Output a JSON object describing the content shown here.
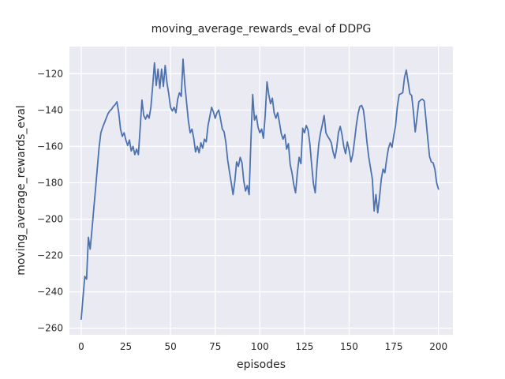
{
  "chart_data": {
    "type": "line",
    "title": "moving_average_rewards_eval of DDPG",
    "xlabel": "episodes",
    "ylabel": "moving_average_rewards_eval",
    "series_name": "moving_average_rewards_eval",
    "legend": "none",
    "grid": true,
    "style": "seaborn-darkgrid",
    "line_color": "#4c72b0",
    "axes_bg_color": "#eaeaf2",
    "grid_color": "#ffffff",
    "text_color": "#262626",
    "xticks": [
      0,
      25,
      50,
      75,
      100,
      125,
      150,
      175,
      200
    ],
    "yticks": [
      -260,
      -240,
      -220,
      -200,
      -180,
      -160,
      -140,
      -120
    ],
    "xlim": [
      -6.6,
      208.1
    ],
    "ylim": [
      -263.6,
      -105.1
    ],
    "x_start": 0,
    "x_step": 1,
    "values": [
      -255,
      -243,
      -231.5,
      -233,
      -210,
      -216.5,
      -206,
      -194.5,
      -183.5,
      -172,
      -160.5,
      -152.5,
      -149.5,
      -147,
      -144.5,
      -142,
      -140.5,
      -139.5,
      -138,
      -137,
      -135.5,
      -141.5,
      -150.5,
      -154.5,
      -152.5,
      -156.5,
      -159.5,
      -156.5,
      -162.5,
      -160,
      -164.5,
      -161.5,
      -164.5,
      -150,
      -134.5,
      -143,
      -145,
      -142.5,
      -144.5,
      -138.5,
      -127,
      -114,
      -126.5,
      -117.5,
      -128,
      -117.5,
      -127,
      -115.5,
      -125,
      -131,
      -138.5,
      -140.5,
      -138.5,
      -141.5,
      -134,
      -130.5,
      -132.5,
      -112,
      -126,
      -136,
      -146,
      -152.5,
      -150.5,
      -155.5,
      -163,
      -160,
      -163.5,
      -158,
      -161,
      -156,
      -157.5,
      -148.5,
      -143.5,
      -138.5,
      -141,
      -144.5,
      -141.5,
      -140,
      -145,
      -150.5,
      -152,
      -158,
      -167.5,
      -174,
      -180,
      -186.5,
      -179,
      -168.5,
      -171,
      -166,
      -169,
      -179,
      -184.5,
      -181.5,
      -186.5,
      -157,
      -131.5,
      -145.5,
      -143,
      -149.5,
      -152.5,
      -150.5,
      -155.5,
      -143,
      -124.5,
      -131.5,
      -136.5,
      -133.5,
      -141.5,
      -144.5,
      -141.5,
      -147,
      -153,
      -156,
      -153.5,
      -161.5,
      -158.5,
      -170,
      -174.5,
      -181,
      -185.5,
      -174.5,
      -166,
      -169.5,
      -150,
      -152.5,
      -148.5,
      -151,
      -158.5,
      -170,
      -180.5,
      -185.5,
      -170,
      -158.5,
      -152.5,
      -148,
      -143,
      -152.5,
      -154.5,
      -156,
      -158,
      -163,
      -166.5,
      -161,
      -152.5,
      -149,
      -153.5,
      -160,
      -164,
      -157.5,
      -162,
      -168.5,
      -164.5,
      -157,
      -148.5,
      -142,
      -138,
      -137.5,
      -140,
      -148,
      -158,
      -166,
      -172,
      -178,
      -195.5,
      -186.5,
      -196.5,
      -188,
      -178,
      -172.5,
      -174.5,
      -167,
      -161,
      -158,
      -160.5,
      -154,
      -148.5,
      -138,
      -131.5,
      -131,
      -130.5,
      -122,
      -118,
      -124.5,
      -131,
      -132,
      -141,
      -152,
      -144,
      -135.5,
      -134.5,
      -134,
      -135,
      -145,
      -155.5,
      -165.5,
      -168.5,
      -169,
      -172.5,
      -180,
      -183.5
    ]
  }
}
